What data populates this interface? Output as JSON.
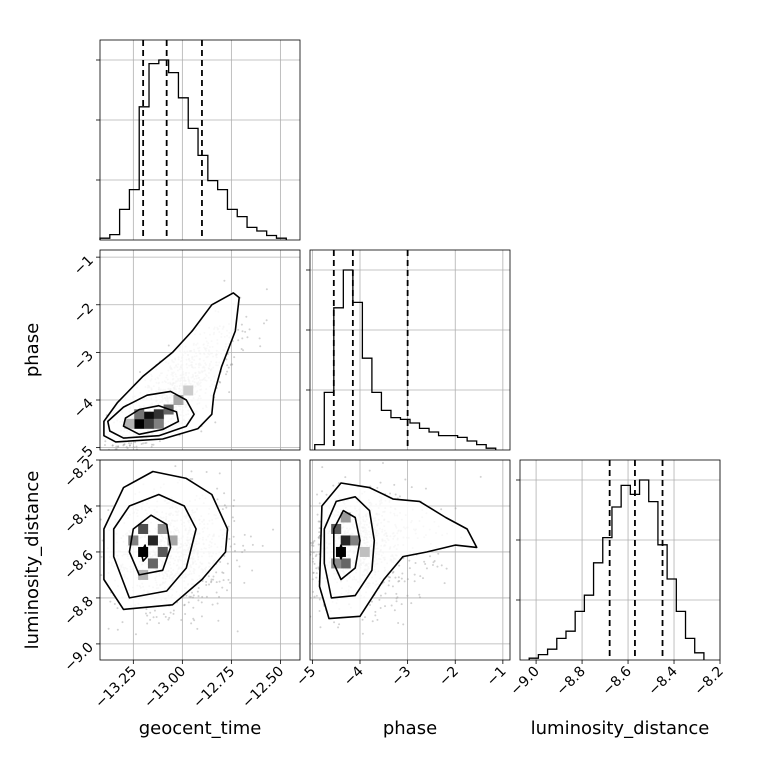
{
  "chart_data": {
    "type": "corner",
    "parameters": [
      "geocent_time",
      "phase",
      "luminosity_distance"
    ],
    "axis_labels": {
      "x": [
        "geocent_time",
        "phase",
        "luminosity_distance"
      ],
      "y": [
        "phase",
        "luminosity_distance"
      ]
    },
    "ranges": {
      "geocent_time": [
        -13.42,
        -12.4
      ],
      "phase": [
        -5.05,
        -0.85
      ],
      "luminosity_distance": [
        -9.07,
        -8.2
      ]
    },
    "ticks": {
      "geocent_time": [
        {
          "value": -13.25,
          "label": "−13.25"
        },
        {
          "value": -13.0,
          "label": "−13.00"
        },
        {
          "value": -12.75,
          "label": "−12.75"
        },
        {
          "value": -12.5,
          "label": "−12.50"
        }
      ],
      "phase": [
        {
          "value": -5,
          "label": "−5"
        },
        {
          "value": -4,
          "label": "−4"
        },
        {
          "value": -3,
          "label": "−3"
        },
        {
          "value": -2,
          "label": "−2"
        },
        {
          "value": -1,
          "label": "−1"
        }
      ],
      "luminosity_distance": [
        {
          "value": -9.0,
          "label": "−9.0"
        },
        {
          "value": -8.8,
          "label": "−8.8"
        },
        {
          "value": -8.6,
          "label": "−8.6"
        },
        {
          "value": -8.4,
          "label": "−8.4"
        },
        {
          "value": -8.2,
          "label": "−8.2"
        }
      ]
    },
    "grid": true,
    "quantiles": {
      "geocent_time": [
        -13.2,
        -13.08,
        -12.9
      ],
      "phase": [
        -4.55,
        -4.15,
        -3.0
      ],
      "luminosity_distance": [
        -8.68,
        -8.57,
        -8.45
      ]
    },
    "histograms": {
      "geocent_time": {
        "edges": [
          -13.42,
          -13.37,
          -13.32,
          -13.27,
          -13.22,
          -13.17,
          -13.12,
          -13.07,
          -13.02,
          -12.97,
          -12.92,
          -12.87,
          -12.82,
          -12.77,
          -12.72,
          -12.67,
          -12.62,
          -12.57,
          -12.52,
          -12.47
        ],
        "counts": [
          0.01,
          0.03,
          0.17,
          0.28,
          0.74,
          0.98,
          1.0,
          0.93,
          0.79,
          0.62,
          0.47,
          0.33,
          0.28,
          0.17,
          0.13,
          0.07,
          0.05,
          0.025,
          0.01
        ]
      },
      "phase": {
        "edges": [
          -4.95,
          -4.75,
          -4.55,
          -4.35,
          -4.15,
          -3.95,
          -3.75,
          -3.55,
          -3.35,
          -3.15,
          -2.95,
          -2.75,
          -2.55,
          -2.35,
          -2.15,
          -1.95,
          -1.75,
          -1.55,
          -1.35,
          -1.15
        ],
        "counts": [
          0.03,
          0.32,
          0.79,
          1.0,
          0.82,
          0.51,
          0.32,
          0.22,
          0.18,
          0.17,
          0.15,
          0.12,
          0.1,
          0.08,
          0.08,
          0.07,
          0.05,
          0.03,
          0.01
        ]
      },
      "luminosity_distance": {
        "edges": [
          -9.03,
          -8.99,
          -8.95,
          -8.91,
          -8.87,
          -8.83,
          -8.79,
          -8.75,
          -8.71,
          -8.67,
          -8.63,
          -8.59,
          -8.55,
          -8.51,
          -8.47,
          -8.43,
          -8.39,
          -8.35,
          -8.31,
          -8.27
        ],
        "counts": [
          0.01,
          0.03,
          0.06,
          0.12,
          0.16,
          0.27,
          0.36,
          0.54,
          0.68,
          0.85,
          0.97,
          0.92,
          1.0,
          0.88,
          0.64,
          0.45,
          0.27,
          0.12,
          0.04
        ]
      }
    },
    "pairs": [
      {
        "x": "geocent_time",
        "y": "phase",
        "density": [
          {
            "x": -13.22,
            "y": -4.5,
            "w": 1.0
          },
          {
            "x": -13.17,
            "y": -4.35,
            "w": 0.95
          },
          {
            "x": -13.12,
            "y": -4.3,
            "w": 0.8
          },
          {
            "x": -13.17,
            "y": -4.5,
            "w": 0.75
          },
          {
            "x": -13.07,
            "y": -4.2,
            "w": 0.6
          },
          {
            "x": -13.22,
            "y": -4.3,
            "w": 0.55
          },
          {
            "x": -13.12,
            "y": -4.5,
            "w": 0.5
          },
          {
            "x": -13.02,
            "y": -4.0,
            "w": 0.35
          },
          {
            "x": -12.97,
            "y": -3.8,
            "w": 0.2
          },
          {
            "x": -13.27,
            "y": -4.5,
            "w": 0.3
          }
        ],
        "contours": [
          [
            [
              -13.3,
              -4.55
            ],
            [
              -13.22,
              -4.72
            ],
            [
              -13.1,
              -4.62
            ],
            [
              -13.02,
              -4.45
            ],
            [
              -13.03,
              -4.25
            ],
            [
              -13.12,
              -4.12
            ],
            [
              -13.22,
              -4.2
            ],
            [
              -13.29,
              -4.38
            ],
            [
              -13.3,
              -4.55
            ]
          ],
          [
            [
              -13.37,
              -4.65
            ],
            [
              -13.3,
              -4.8
            ],
            [
              -13.12,
              -4.75
            ],
            [
              -12.98,
              -4.55
            ],
            [
              -12.94,
              -4.3
            ],
            [
              -12.98,
              -4.0
            ],
            [
              -13.06,
              -3.82
            ],
            [
              -13.18,
              -3.9
            ],
            [
              -13.3,
              -4.15
            ],
            [
              -13.38,
              -4.45
            ],
            [
              -13.37,
              -4.65
            ]
          ],
          [
            [
              -13.4,
              -4.75
            ],
            [
              -13.34,
              -4.88
            ],
            [
              -13.1,
              -4.82
            ],
            [
              -12.92,
              -4.6
            ],
            [
              -12.85,
              -4.3
            ],
            [
              -12.84,
              -3.9
            ],
            [
              -12.8,
              -3.3
            ],
            [
              -12.73,
              -2.55
            ],
            [
              -12.71,
              -1.85
            ],
            [
              -12.74,
              -1.75
            ],
            [
              -12.85,
              -2.0
            ],
            [
              -12.95,
              -2.55
            ],
            [
              -13.05,
              -3.0
            ],
            [
              -13.2,
              -3.5
            ],
            [
              -13.33,
              -4.05
            ],
            [
              -13.4,
              -4.45
            ],
            [
              -13.4,
              -4.75
            ]
          ]
        ],
        "scatter": {
          "center": [
            -13.05,
            -3.9
          ],
          "spread": [
            0.16,
            0.7
          ],
          "corr": 0.78
        }
      },
      {
        "x": "geocent_time",
        "y": "luminosity_distance",
        "density": [
          {
            "x": -13.2,
            "y": -8.6,
            "w": 1.0
          },
          {
            "x": -13.15,
            "y": -8.55,
            "w": 0.85
          },
          {
            "x": -13.2,
            "y": -8.5,
            "w": 0.7
          },
          {
            "x": -13.1,
            "y": -8.6,
            "w": 0.65
          },
          {
            "x": -13.15,
            "y": -8.65,
            "w": 0.6
          },
          {
            "x": -13.25,
            "y": -8.55,
            "w": 0.5
          },
          {
            "x": -13.1,
            "y": -8.5,
            "w": 0.45
          },
          {
            "x": -13.05,
            "y": -8.55,
            "w": 0.35
          },
          {
            "x": -13.2,
            "y": -8.7,
            "w": 0.3
          }
        ],
        "contours": [
          [
            [
              -13.21,
              -8.6
            ],
            [
              -13.2,
              -8.64
            ],
            [
              -13.18,
              -8.62
            ],
            [
              -13.19,
              -8.57
            ],
            [
              -13.21,
              -8.6
            ]
          ],
          [
            [
              -13.27,
              -8.6
            ],
            [
              -13.22,
              -8.7
            ],
            [
              -13.1,
              -8.68
            ],
            [
              -13.06,
              -8.58
            ],
            [
              -13.08,
              -8.48
            ],
            [
              -13.16,
              -8.44
            ],
            [
              -13.25,
              -8.5
            ],
            [
              -13.27,
              -8.6
            ]
          ],
          [
            [
              -13.35,
              -8.62
            ],
            [
              -13.27,
              -8.8
            ],
            [
              -13.08,
              -8.77
            ],
            [
              -12.98,
              -8.67
            ],
            [
              -12.93,
              -8.5
            ],
            [
              -12.99,
              -8.4
            ],
            [
              -13.12,
              -8.35
            ],
            [
              -13.27,
              -8.4
            ],
            [
              -13.35,
              -8.5
            ],
            [
              -13.35,
              -8.62
            ]
          ],
          [
            [
              -13.4,
              -8.72
            ],
            [
              -13.3,
              -8.85
            ],
            [
              -13.05,
              -8.83
            ],
            [
              -12.9,
              -8.72
            ],
            [
              -12.78,
              -8.6
            ],
            [
              -12.77,
              -8.5
            ],
            [
              -12.85,
              -8.35
            ],
            [
              -12.98,
              -8.28
            ],
            [
              -13.15,
              -8.25
            ],
            [
              -13.3,
              -8.32
            ],
            [
              -13.4,
              -8.5
            ],
            [
              -13.4,
              -8.72
            ]
          ]
        ],
        "scatter": {
          "center": [
            -13.05,
            -8.6
          ],
          "spread": [
            0.16,
            0.13
          ],
          "corr": 0.1
        }
      },
      {
        "x": "phase",
        "y": "luminosity_distance",
        "density": [
          {
            "x": -4.4,
            "y": -8.6,
            "w": 1.0
          },
          {
            "x": -4.3,
            "y": -8.55,
            "w": 0.85
          },
          {
            "x": -4.5,
            "y": -8.5,
            "w": 0.65
          },
          {
            "x": -4.3,
            "y": -8.65,
            "w": 0.6
          },
          {
            "x": -4.1,
            "y": -8.55,
            "w": 0.5
          },
          {
            "x": -4.5,
            "y": -8.65,
            "w": 0.45
          },
          {
            "x": -4.3,
            "y": -8.45,
            "w": 0.4
          },
          {
            "x": -3.9,
            "y": -8.6,
            "w": 0.25
          }
        ],
        "contours": [
          [
            [
              -4.45,
              -8.6
            ],
            [
              -4.4,
              -8.63
            ],
            [
              -4.35,
              -8.6
            ],
            [
              -4.4,
              -8.57
            ],
            [
              -4.45,
              -8.6
            ]
          ],
          [
            [
              -4.55,
              -8.65
            ],
            [
              -4.4,
              -8.72
            ],
            [
              -4.1,
              -8.67
            ],
            [
              -4.0,
              -8.55
            ],
            [
              -4.1,
              -8.45
            ],
            [
              -4.35,
              -8.42
            ],
            [
              -4.55,
              -8.5
            ],
            [
              -4.55,
              -8.65
            ]
          ],
          [
            [
              -4.75,
              -8.65
            ],
            [
              -4.6,
              -8.8
            ],
            [
              -4.1,
              -8.79
            ],
            [
              -3.75,
              -8.68
            ],
            [
              -3.7,
              -8.55
            ],
            [
              -3.8,
              -8.42
            ],
            [
              -4.1,
              -8.36
            ],
            [
              -4.5,
              -8.38
            ],
            [
              -4.75,
              -8.5
            ],
            [
              -4.75,
              -8.65
            ]
          ],
          [
            [
              -4.85,
              -8.75
            ],
            [
              -4.65,
              -8.89
            ],
            [
              -4.0,
              -8.88
            ],
            [
              -3.5,
              -8.72
            ],
            [
              -3.1,
              -8.62
            ],
            [
              -2.6,
              -8.6
            ],
            [
              -2.0,
              -8.57
            ],
            [
              -1.55,
              -8.58
            ],
            [
              -1.75,
              -8.5
            ],
            [
              -2.2,
              -8.45
            ],
            [
              -2.75,
              -8.38
            ],
            [
              -3.3,
              -8.37
            ],
            [
              -3.8,
              -8.32
            ],
            [
              -4.4,
              -8.3
            ],
            [
              -4.8,
              -8.4
            ],
            [
              -4.85,
              -8.75
            ]
          ]
        ],
        "scatter": {
          "center": [
            -4.0,
            -8.58
          ],
          "spread": [
            0.7,
            0.13
          ],
          "corr": 0.05
        }
      }
    ]
  }
}
